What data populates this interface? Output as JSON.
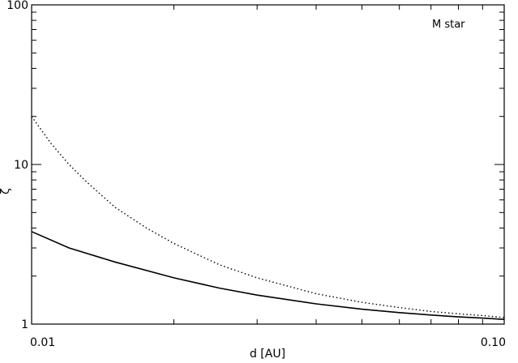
{
  "chart_data": {
    "type": "line",
    "xlabel": "d [AU]",
    "ylabel": "ζ",
    "annotation": "M star",
    "x_scale": "log",
    "y_scale": "log",
    "xlim": [
      0.01,
      0.1
    ],
    "ylim": [
      1,
      100
    ],
    "x_ticks": [
      {
        "value": 0.01,
        "label": "0.01"
      },
      {
        "value": 0.1,
        "label": "0.10"
      }
    ],
    "y_ticks": [
      {
        "value": 1,
        "label": "1"
      },
      {
        "value": 10,
        "label": "10"
      },
      {
        "value": 100,
        "label": "100"
      }
    ],
    "grid": false,
    "series": [
      {
        "style": "solid",
        "color": "#000000",
        "x": [
          0.01,
          0.012,
          0.015,
          0.02,
          0.025,
          0.03,
          0.04,
          0.05,
          0.06,
          0.07,
          0.08,
          0.09,
          0.1
        ],
        "y": [
          3.8,
          3.0,
          2.45,
          1.95,
          1.68,
          1.52,
          1.34,
          1.24,
          1.18,
          1.14,
          1.11,
          1.09,
          1.07
        ]
      },
      {
        "style": "dotted",
        "color": "#000000",
        "x": [
          0.01,
          0.011,
          0.012,
          0.013,
          0.015,
          0.0175,
          0.02,
          0.025,
          0.03,
          0.04,
          0.05,
          0.06,
          0.07,
          0.08,
          0.09,
          0.1
        ],
        "y": [
          20.0,
          13.5,
          10.0,
          7.9,
          5.4,
          4.0,
          3.2,
          2.35,
          1.95,
          1.55,
          1.37,
          1.27,
          1.2,
          1.16,
          1.13,
          1.1
        ]
      }
    ]
  }
}
